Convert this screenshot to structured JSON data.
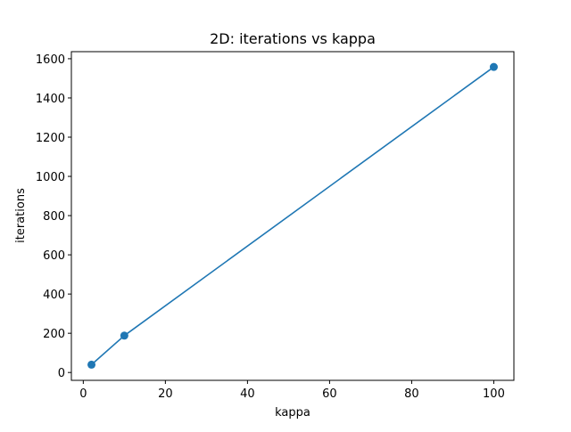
{
  "chart_data": {
    "type": "line",
    "title": "2D: iterations vs kappa",
    "xlabel": "kappa",
    "ylabel": "iterations",
    "xlim": [
      -2.9,
      104.9
    ],
    "ylim": [
      -40,
      1636
    ],
    "xticks": [
      0,
      20,
      40,
      60,
      80,
      100
    ],
    "yticks": [
      0,
      200,
      400,
      600,
      800,
      1000,
      1200,
      1400,
      1600
    ],
    "xtick_labels": [
      "0",
      "20",
      "40",
      "60",
      "80",
      "100"
    ],
    "ytick_labels": [
      "0",
      "200",
      "400",
      "600",
      "800",
      "1000",
      "1200",
      "1400",
      "1600"
    ],
    "grid": false,
    "series": [
      {
        "color": "#1f77b4",
        "marker": "circle",
        "x": [
          2,
          10,
          100
        ],
        "y": [
          40,
          188,
          1558
        ]
      }
    ]
  }
}
